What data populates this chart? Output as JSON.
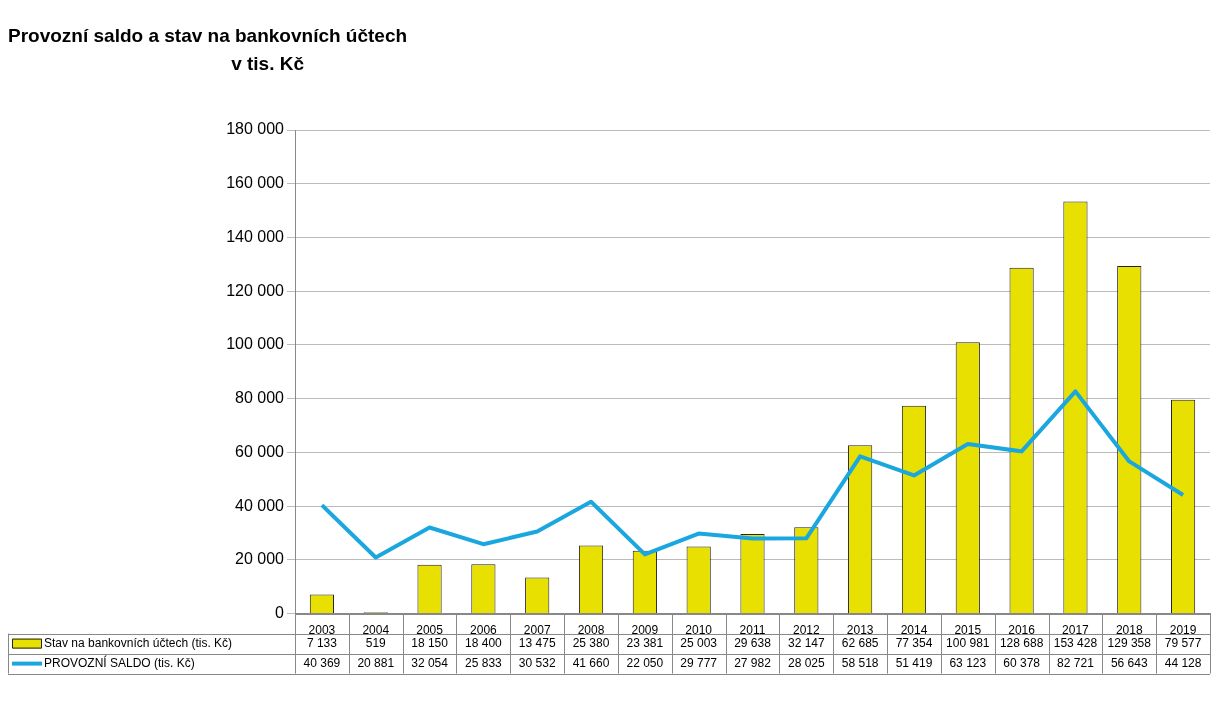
{
  "chart_data": {
    "type": "bar",
    "title": "Provozní saldo a stav na bankovních účtech",
    "subtitle": "v tis. Kč",
    "categories": [
      "2003",
      "2004",
      "2005",
      "2006",
      "2007",
      "2008",
      "2009",
      "2010",
      "2011",
      "2012",
      "2013",
      "2014",
      "2015",
      "2016",
      "2017",
      "2018",
      "2019"
    ],
    "series": [
      {
        "name": "Stav na bankovních účtech (tis. Kč)",
        "color": "#e8e000",
        "values": [
          7133,
          519,
          18150,
          18400,
          13475,
          25380,
          23381,
          25003,
          29638,
          32147,
          62685,
          77354,
          100981,
          128688,
          153428,
          129358,
          79577
        ],
        "value_labels": [
          "7 133",
          "519",
          "18 150",
          "18 400",
          "13 475",
          "25 380",
          "23 381",
          "25 003",
          "29 638",
          "32 147",
          "62 685",
          "77 354",
          "100 981",
          "128 688",
          "153 428",
          "129 358",
          "79 577"
        ]
      },
      {
        "name": "PROVOZNÍ SALDO (tis. Kč)",
        "type": "line",
        "color": "#1aa7e0",
        "values": [
          40369,
          20881,
          32054,
          25833,
          30532,
          41660,
          22050,
          29777,
          27982,
          28025,
          58518,
          51419,
          63123,
          60378,
          82721,
          56643,
          44128
        ],
        "value_labels": [
          "40 369",
          "20 881",
          "32 054",
          "25 833",
          "30 532",
          "41 660",
          "22 050",
          "29 777",
          "27 982",
          "28 025",
          "58 518",
          "51 419",
          "63 123",
          "60 378",
          "82 721",
          "56 643",
          "44 128"
        ]
      }
    ],
    "ylim": [
      0,
      180000
    ],
    "yticks": [
      {
        "value": 0,
        "label": "0"
      },
      {
        "value": 20000,
        "label": "20 000"
      },
      {
        "value": 40000,
        "label": "40 000"
      },
      {
        "value": 60000,
        "label": "60 000"
      },
      {
        "value": 80000,
        "label": "80 000"
      },
      {
        "value": 100000,
        "label": "100 000"
      },
      {
        "value": 120000,
        "label": "120 000"
      },
      {
        "value": 140000,
        "label": "140 000"
      },
      {
        "value": 160000,
        "label": "160 000"
      },
      {
        "value": 180000,
        "label": "180 000"
      }
    ],
    "grid": "y",
    "legend": "bottom",
    "marker": "none",
    "line_style": "solid"
  }
}
